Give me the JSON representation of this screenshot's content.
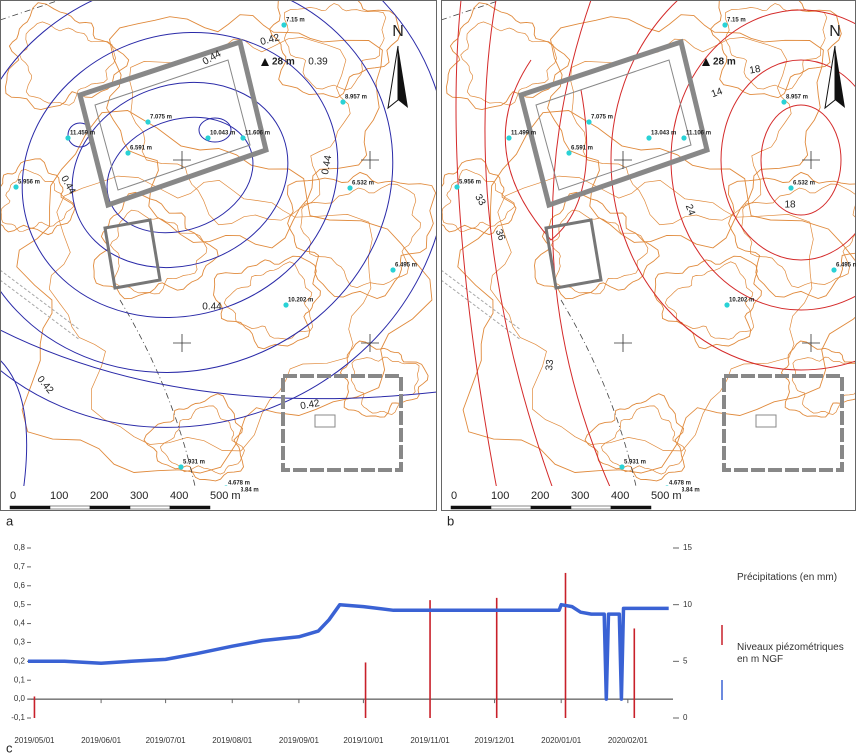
{
  "maps": [
    {
      "label": "a",
      "north": "N",
      "marker": "28 m",
      "wells": [
        "7.15 m",
        "8.957 m",
        "7.075 m",
        "11.459 m",
        "6.591 m",
        "10.043 m",
        "11.606 m",
        "5.956 m",
        "6.532 m",
        "6.495 m",
        "10.202 m",
        "5.931 m",
        "4.678 m",
        "3.84 m"
      ],
      "contour_labels": [
        "0.44",
        "0.42",
        "0.39",
        "0.44",
        "0.44",
        "0.44",
        "0.42",
        "0.42"
      ],
      "scale": [
        "0",
        "100",
        "200",
        "300",
        "400",
        "500 m"
      ]
    },
    {
      "label": "b",
      "north": "N",
      "marker": "28 m",
      "wells": [
        "7.15 m",
        "8.957 m",
        "7.075 m",
        "11.499 m",
        "6.591 m",
        "13.043 m",
        "11.106 m",
        "5.956 m",
        "6.532 m",
        "6.495 m",
        "10.202 m",
        "5.931 m",
        "4.678 m",
        "3.84 m"
      ],
      "contour_labels": [
        "14",
        "18",
        "18",
        "24",
        "33",
        "36",
        "33"
      ],
      "scale": [
        "0",
        "100",
        "200",
        "300",
        "400",
        "500 m"
      ]
    }
  ],
  "chart_data": {
    "type": "line",
    "label": "c",
    "xlim": [
      "2019/04/28",
      "2020/02/22"
    ],
    "xticks": [
      "2019/05/01",
      "2019/06/01",
      "2019/07/01",
      "2019/08/01",
      "2019/09/01",
      "2019/10/01",
      "2019/11/01",
      "2019/12/01",
      "2020/01/01",
      "2020/02/01"
    ],
    "ylim": [
      -0.1,
      0.8
    ],
    "yticks": [
      {
        "value": 0.8,
        "label": "0,8"
      },
      {
        "value": 0.7,
        "label": "0,7"
      },
      {
        "value": 0.6,
        "label": "0,6"
      },
      {
        "value": 0.5,
        "label": "0,5"
      },
      {
        "value": 0.4,
        "label": "0,4"
      },
      {
        "value": 0.3,
        "label": "0,3"
      },
      {
        "value": 0.2,
        "label": "0,2"
      },
      {
        "value": 0.1,
        "label": "0,1"
      },
      {
        "value": 0,
        "label": "0,0"
      },
      {
        "value": -0.1,
        "label": "-0,1"
      }
    ],
    "y2lim": [
      0,
      15
    ],
    "y2ticks": [
      0,
      5,
      10,
      15
    ],
    "grid": false,
    "series": [
      {
        "name": "Précipitations (en mm)",
        "color": "#c8202a",
        "type": "bar",
        "axis": "y2",
        "x": [
          "2019/05/01",
          "2019/10/02",
          "2019/11/01",
          "2019/12/02",
          "2020/01/03",
          "2020/02/04"
        ],
        "values": [
          1.9,
          4.9,
          10.4,
          10.6,
          12.8,
          7.9
        ]
      },
      {
        "name": "Niveaux piézométriques en m NGF",
        "color": "#3a62d4",
        "type": "line",
        "x": [
          "2019/04/28",
          "2019/05/15",
          "2019/06/01",
          "2019/06/15",
          "2019/07/01",
          "2019/07/15",
          "2019/08/01",
          "2019/08/15",
          "2019/09/01",
          "2019/09/10",
          "2019/09/15",
          "2019/09/20",
          "2019/10/01",
          "2019/10/15",
          "2019/11/01",
          "2019/11/15",
          "2019/12/01",
          "2019/12/15",
          "2019/12/31",
          "2020/01/01",
          "2020/01/06",
          "2020/01/10",
          "2020/01/15",
          "2020/01/21",
          "2020/01/22",
          "2020/01/23",
          "2020/01/28",
          "2020/01/29",
          "2020/01/30",
          "2020/02/10",
          "2020/02/20"
        ],
        "values": [
          0.2,
          0.2,
          0.19,
          0.2,
          0.21,
          0.24,
          0.28,
          0.31,
          0.33,
          0.36,
          0.42,
          0.5,
          0.49,
          0.47,
          0.47,
          0.47,
          0.47,
          0.47,
          0.47,
          0.5,
          0.49,
          0.46,
          0.45,
          0.45,
          0,
          0.45,
          0.45,
          0,
          0.48,
          0.48,
          0.48
        ]
      }
    ]
  }
}
